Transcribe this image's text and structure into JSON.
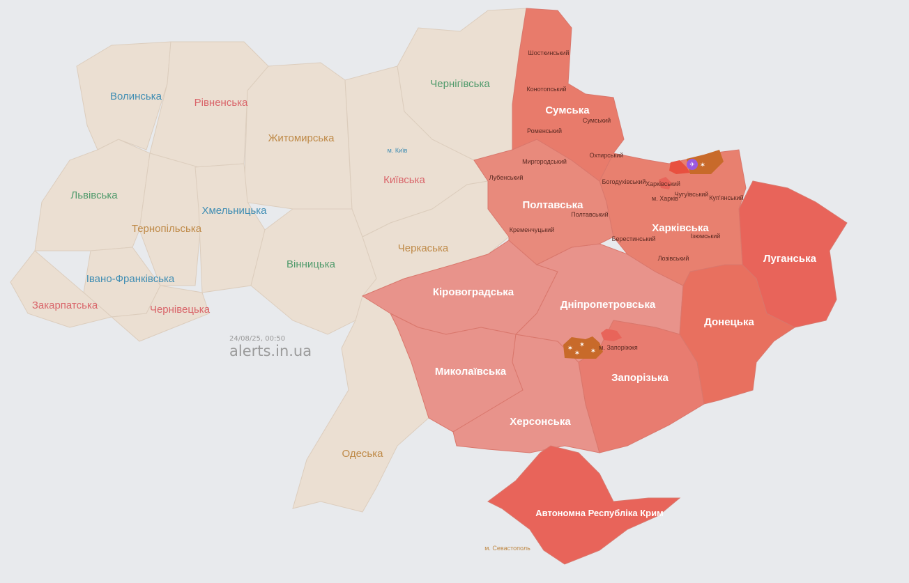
{
  "timestamp": "24/08/25, 00:50",
  "watermark": "alerts.in.ua",
  "colors": {
    "background": "#e8eaed",
    "no_alert": "#ebdfd2",
    "alert_light": "#e8938b",
    "alert_medium": "#e8857a",
    "alert_strong": "#e87a6c",
    "alert_strongest": "#e8645a",
    "shelling_marker": "#c86a2a",
    "drone_marker": "#9b59e0"
  },
  "regions": {
    "volyn": {
      "name": "Волинська",
      "label_color": "#3f8db3"
    },
    "rivne": {
      "name": "Рівненська",
      "label_color": "#d9656a"
    },
    "zhytomyr": {
      "name": "Житомирська",
      "label_color": "#bf8a48"
    },
    "lviv": {
      "name": "Львівська",
      "label_color": "#4f9a6b"
    },
    "khmelnytskyi": {
      "name": "Хмельницька",
      "label_color": "#3f8db3"
    },
    "ternopil": {
      "name": "Тернопільська",
      "label_color": "#bf8a48"
    },
    "ivano_frankivsk": {
      "name": "Івано-Франківська",
      "label_color": "#3f8db3"
    },
    "zakarpattia": {
      "name": "Закарпатська",
      "label_color": "#d9656a"
    },
    "chernivtsi": {
      "name": "Чернівецька",
      "label_color": "#d9656a"
    },
    "vinnytsia": {
      "name": "Вінницька",
      "label_color": "#4f9a6b"
    },
    "kyiv_oblast": {
      "name": "Київська",
      "label_color": "#d9656a"
    },
    "kyiv_city": {
      "name": "м. Київ",
      "label_color": "#3f8db3"
    },
    "chernihiv": {
      "name": "Чернігівська",
      "label_color": "#4f9a6b"
    },
    "cherkasy": {
      "name": "Черкаська",
      "label_color": "#bf8a48"
    },
    "odesa": {
      "name": "Одеська",
      "label_color": "#bf8a48"
    },
    "kirovohrad": {
      "name": "Кіровоградська",
      "status": "alert"
    },
    "mykolaiv": {
      "name": "Миколаївська",
      "status": "alert"
    },
    "kherson": {
      "name": "Херсонська",
      "status": "alert"
    },
    "dnipro": {
      "name": "Дніпропетровська",
      "status": "alert"
    },
    "zaporizhzhia": {
      "name": "Запорізька",
      "status": "alert"
    },
    "zaporizhzhia_city": {
      "name": "м. Запоріжжя",
      "status": "alert"
    },
    "donetsk": {
      "name": "Донецька",
      "status": "alert"
    },
    "luhansk": {
      "name": "Луганська",
      "status": "alert"
    },
    "kharkiv": {
      "name": "Харківська",
      "status": "alert"
    },
    "poltava": {
      "name": "Полтавська",
      "status": "alert"
    },
    "sumy": {
      "name": "Сумська",
      "status": "alert"
    },
    "crimea": {
      "name": "Автономна Республіка Крим",
      "status": "alert"
    },
    "sevastopol": {
      "name": "м. Севастополь",
      "label_color": "#bf8a48"
    }
  },
  "districts": {
    "shostka": "Шосткинський",
    "konotop": "Конотопський",
    "sumskyi": "Сумський",
    "romny": "Роменський",
    "okhtyrka": "Охтирський",
    "myrhorod": "Миргородський",
    "lubny": "Лубенський",
    "bohodukhiv": "Богодухівський",
    "kharkivskyi": "Харківський",
    "kharkiv_city": "м. Харків",
    "chuhuiv": "Чугуївський",
    "kupiansk": "Куп'янський",
    "poltavskyi": "Полтавський",
    "kremenchuk": "Кременчуцький",
    "berestyn": "Берестинський",
    "izium": "Ізюмський",
    "lozova": "Лозівський"
  }
}
